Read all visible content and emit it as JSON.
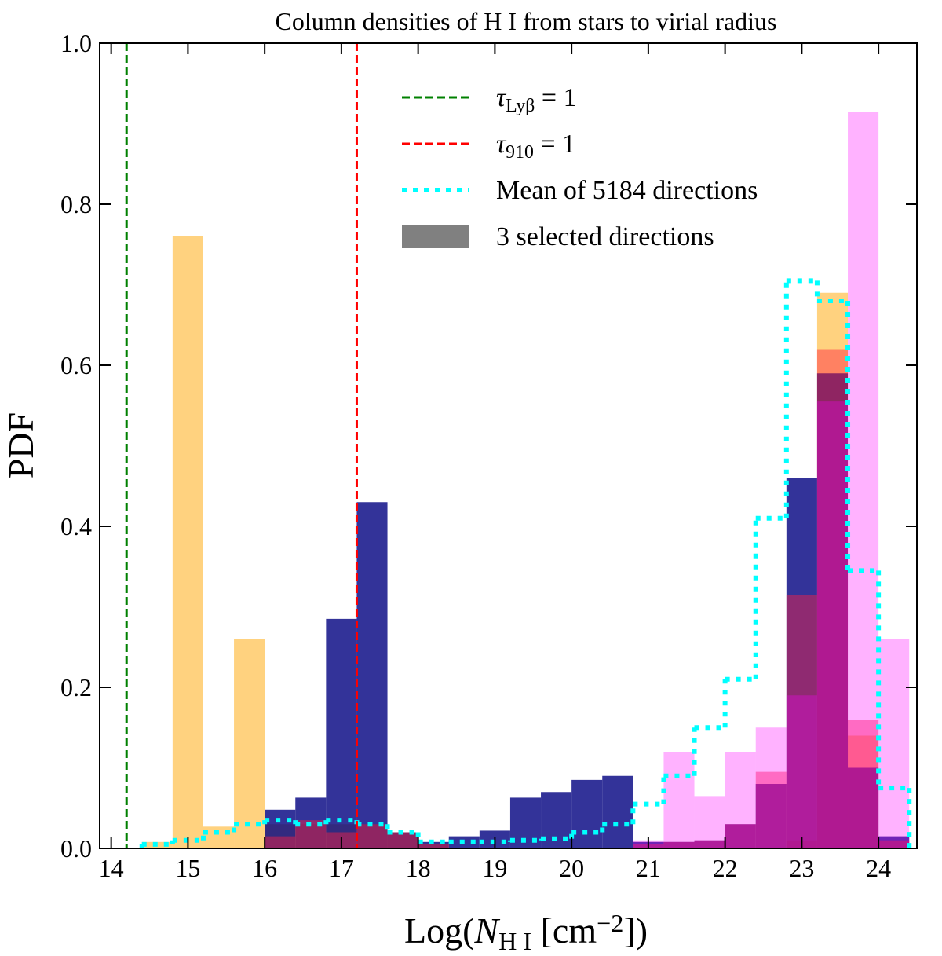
{
  "chart_data": {
    "type": "histogram",
    "title": [
      {
        "text": "Column densities of H I from stars to virial radius"
      }
    ],
    "x_label": [
      {
        "text": "Log("
      },
      {
        "text": "N",
        "italic": true
      },
      {
        "text": "H I",
        "sub": true
      },
      {
        "text": " [cm"
      },
      {
        "text": "−2",
        "sup": true
      },
      {
        "text": "])"
      }
    ],
    "y_label": "PDF",
    "xlim": [
      13.85,
      24.5
    ],
    "ylim": [
      0,
      1.0
    ],
    "xticks": [
      14,
      15,
      16,
      17,
      18,
      19,
      20,
      21,
      22,
      23,
      24
    ],
    "yticks": [
      {
        "value": 0,
        "label": "0.0"
      },
      0.2,
      0.4,
      0.6,
      0.8,
      {
        "value": 1.0,
        "label": "1.0"
      }
    ],
    "bins": [
      14.4,
      14.8,
      15.2,
      15.6,
      16.0,
      16.4,
      16.8,
      17.2,
      17.6,
      18.0,
      18.4,
      18.8,
      19.2,
      19.6,
      20.0,
      20.4,
      20.8,
      21.2,
      21.6,
      22.0,
      22.4,
      22.8,
      23.2,
      23.6,
      24.0,
      24.4
    ],
    "series": [
      {
        "color": "#ffa500",
        "alpha": 0.5,
        "values": [
          0.008,
          0.76,
          0.027,
          0.26,
          0.03,
          0.03,
          0.03,
          0.03,
          0.02,
          0.005,
          0,
          0,
          0,
          0,
          0,
          0,
          0,
          0,
          0,
          0,
          0,
          0.01,
          0.69,
          0.14,
          0.01
        ]
      },
      {
        "color": "#000080",
        "alpha": 0.8,
        "values": [
          0,
          0,
          0,
          0,
          0.048,
          0.063,
          0.285,
          0.43,
          0.02,
          0.008,
          0.015,
          0.022,
          0.063,
          0.07,
          0.085,
          0.09,
          0.008,
          0.008,
          0.01,
          0.03,
          0.08,
          0.46,
          0.59,
          0.1,
          0.015
        ]
      },
      {
        "color": "#ff2040",
        "alpha": 0.45,
        "values": [
          0,
          0,
          0,
          0,
          0.015,
          0.035,
          0.02,
          0.03,
          0.02,
          0.005,
          0,
          0,
          0,
          0,
          0,
          0,
          0.005,
          0.008,
          0.01,
          0.03,
          0.095,
          0.315,
          0.62,
          0.16,
          0.01
        ]
      },
      {
        "color": "#ff00ff",
        "alpha": 0.3,
        "values": [
          0,
          0,
          0,
          0,
          0,
          0,
          0,
          0,
          0,
          0,
          0,
          0,
          0,
          0,
          0,
          0,
          0.01,
          0.12,
          0.065,
          0.12,
          0.15,
          0.19,
          0.555,
          0.915,
          0.26
        ]
      },
      {
        "color": "#00ffff",
        "style": "dotted",
        "values": [
          0.005,
          0.01,
          0.02,
          0.03,
          0.035,
          0.03,
          0.035,
          0.03,
          0.02,
          0.008,
          0.008,
          0.008,
          0.01,
          0.012,
          0.02,
          0.03,
          0.055,
          0.09,
          0.15,
          0.21,
          0.41,
          0.705,
          0.68,
          0.345,
          0.075
        ]
      }
    ],
    "vlines": [
      {
        "x": 14.2,
        "color": "#008000"
      },
      {
        "x": 17.2,
        "color": "#ff0000"
      }
    ],
    "legend": [
      {
        "style": "dashed",
        "color": "#008000",
        "label": [
          {
            "text": "τ",
            "italic": true
          },
          {
            "text": "Lyβ",
            "sub": true
          },
          {
            "text": " = 1"
          }
        ]
      },
      {
        "style": "dashed",
        "color": "#ff0000",
        "label": [
          {
            "text": "τ",
            "italic": true
          },
          {
            "text": "910",
            "sub": true
          },
          {
            "text": " = 1"
          }
        ]
      },
      {
        "style": "dotted",
        "color": "#00ffff",
        "label": [
          {
            "text": "Mean of 5184 directions"
          }
        ]
      },
      {
        "style": "patch",
        "color": "#808080",
        "label": [
          {
            "text": "3 selected directions"
          }
        ]
      }
    ]
  }
}
